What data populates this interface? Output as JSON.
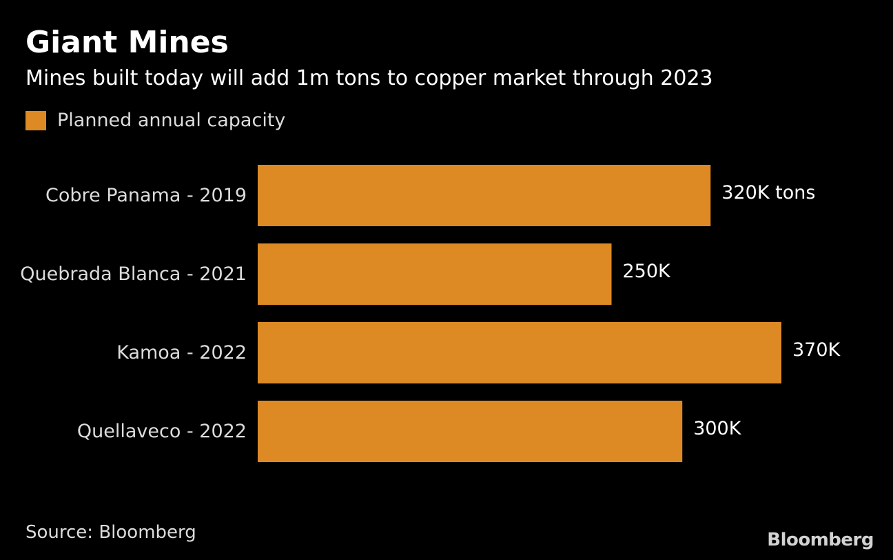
{
  "title": "Giant Mines",
  "subtitle": "Mines built today will add 1m tons to copper market through 2023",
  "source": "Source: Bloomberg",
  "logo_text": "Bloomberg",
  "colors": {
    "background": "#000000",
    "bar": "#DD8A24",
    "text": "#FFFFFF",
    "muted_text": "#DCDCDC"
  },
  "chart_data": {
    "type": "bar",
    "orientation": "horizontal",
    "categories": [
      "Cobre Panama - 2019",
      "Quebrada Blanca - 2021",
      "Kamoa - 2022",
      "Quellaveco - 2022"
    ],
    "series": [
      {
        "name": "Planned annual capacity",
        "values": [
          320,
          250,
          370,
          300
        ],
        "data_labels": [
          "320K tons",
          "250K",
          "370K",
          "300K"
        ]
      }
    ],
    "unit": "thousand tons",
    "xlim": [
      0,
      370
    ],
    "legend": "top-left",
    "grid": false
  }
}
